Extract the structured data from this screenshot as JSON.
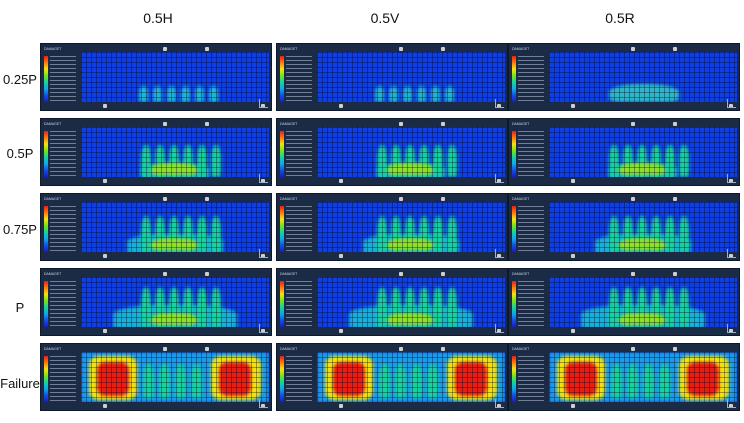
{
  "columns": [
    "0.5H",
    "0.5V",
    "0.5R"
  ],
  "rows": [
    "0.25P",
    "0.5P",
    "0.75P",
    "P",
    "Failure"
  ],
  "legend_title": "DAMAGET",
  "colors": {
    "background": "#1b2b45",
    "low": "#0f3fe0",
    "mid": "#17d39d",
    "high": "#f2e30e",
    "peak": "#e81e12"
  }
}
